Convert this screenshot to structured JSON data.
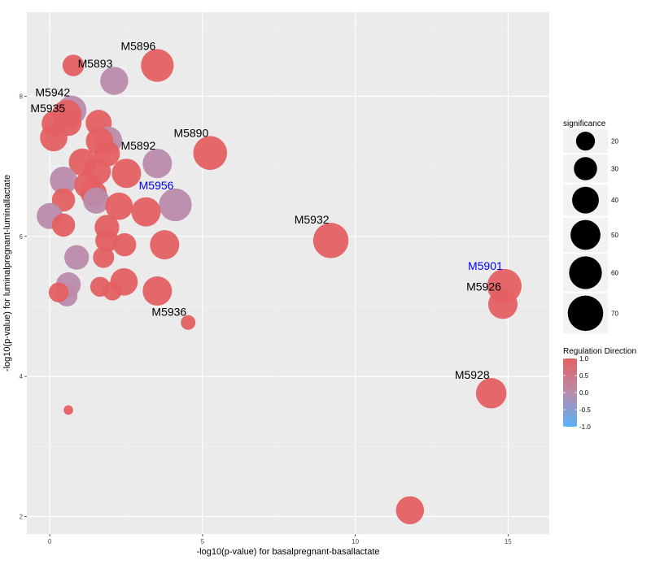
{
  "chart_data": {
    "type": "scatter",
    "subtype": "bubble",
    "title": "",
    "xlabel": "-log10(p-value) for basalpregnant-basallactate",
    "ylabel": "-log10(p-value) for luminalpregnant-luminallactate",
    "xlim": [
      -0.75,
      16.35
    ],
    "ylim": [
      1.75,
      9.2
    ],
    "xticks": [
      0,
      5,
      10,
      15
    ],
    "yticks": [
      2,
      4,
      6,
      8
    ],
    "grid": true,
    "background": "#EBEBEB",
    "colors": {
      "up": "#E46062",
      "mid": "#B98BAB",
      "down": "#56B1F7",
      "label_default": "#000000",
      "label_highlight": "#0000FF"
    },
    "size_legend": {
      "title": "significance",
      "breaks": [
        20,
        30,
        40,
        50,
        60,
        70
      ],
      "position": "right"
    },
    "color_legend": {
      "title": "Regulation Direction",
      "breaks": [
        1.0,
        0.5,
        0.0,
        -0.5,
        -1.0
      ],
      "labels": [
        "1.0",
        "0.5",
        "0.0",
        "-0.5",
        "-1.0"
      ],
      "position": "right"
    },
    "points": [
      {
        "x": 0.77,
        "y": 8.44,
        "size": 26,
        "direction": 1,
        "label": ""
      },
      {
        "x": 3.52,
        "y": 8.44,
        "size": 60,
        "direction": 1,
        "label": "M5896",
        "label_color": "#000000"
      },
      {
        "x": 2.11,
        "y": 8.22,
        "size": 44,
        "direction": 0,
        "label": "M5893",
        "label_color": "#000000"
      },
      {
        "x": 0.72,
        "y": 7.8,
        "size": 48,
        "direction": 0,
        "label": "M5942",
        "label_color": "#000000"
      },
      {
        "x": 0.56,
        "y": 7.74,
        "size": 48,
        "direction": 1,
        "label": "M5935",
        "label_color": "#000000"
      },
      {
        "x": 0.16,
        "y": 7.61,
        "size": 38,
        "direction": 1,
        "label": ""
      },
      {
        "x": 0.61,
        "y": 7.62,
        "size": 38,
        "direction": 1,
        "label": ""
      },
      {
        "x": 1.6,
        "y": 7.62,
        "size": 38,
        "direction": 1,
        "label": ""
      },
      {
        "x": 0.13,
        "y": 7.41,
        "size": 42,
        "direction": 1,
        "label": ""
      },
      {
        "x": 1.92,
        "y": 7.37,
        "size": 42,
        "direction": 0,
        "label": ""
      },
      {
        "x": 1.63,
        "y": 7.36,
        "size": 42,
        "direction": 1,
        "label": ""
      },
      {
        "x": 5.25,
        "y": 7.19,
        "size": 64,
        "direction": 1,
        "label": "M5890",
        "label_color": "#000000"
      },
      {
        "x": 1.87,
        "y": 7.18,
        "size": 38,
        "direction": 1,
        "label": ""
      },
      {
        "x": 3.52,
        "y": 7.04,
        "size": 48,
        "direction": 0,
        "label": "M5892",
        "label_color": "#000000"
      },
      {
        "x": 1.07,
        "y": 7.06,
        "size": 42,
        "direction": 1,
        "label": ""
      },
      {
        "x": 1.55,
        "y": 6.93,
        "size": 42,
        "direction": 1,
        "label": ""
      },
      {
        "x": 2.51,
        "y": 6.9,
        "size": 48,
        "direction": 1,
        "label": ""
      },
      {
        "x": 0.45,
        "y": 6.8,
        "size": 42,
        "direction": 0,
        "label": ""
      },
      {
        "x": 1.23,
        "y": 6.73,
        "size": 38,
        "direction": 1,
        "label": ""
      },
      {
        "x": 1.44,
        "y": 6.61,
        "size": 38,
        "direction": 1,
        "label": ""
      },
      {
        "x": 1.52,
        "y": 6.51,
        "size": 38,
        "direction": 0,
        "label": ""
      },
      {
        "x": 0.45,
        "y": 6.52,
        "size": 30,
        "direction": 1,
        "label": ""
      },
      {
        "x": 2.27,
        "y": 6.43,
        "size": 42,
        "direction": 1,
        "label": ""
      },
      {
        "x": 4.11,
        "y": 6.45,
        "size": 60,
        "direction": 0,
        "label": "M5956",
        "label_color": "#0000FF"
      },
      {
        "x": 3.15,
        "y": 6.35,
        "size": 48,
        "direction": 1,
        "label": ""
      },
      {
        "x": 0.0,
        "y": 6.29,
        "size": 38,
        "direction": 0,
        "label": ""
      },
      {
        "x": 0.45,
        "y": 6.16,
        "size": 30,
        "direction": 1,
        "label": ""
      },
      {
        "x": 1.87,
        "y": 6.13,
        "size": 34,
        "direction": 1,
        "label": ""
      },
      {
        "x": 1.87,
        "y": 5.94,
        "size": 30,
        "direction": 1,
        "label": ""
      },
      {
        "x": 2.45,
        "y": 5.88,
        "size": 30,
        "direction": 1,
        "label": ""
      },
      {
        "x": 3.76,
        "y": 5.88,
        "size": 48,
        "direction": 1,
        "label": ""
      },
      {
        "x": 9.2,
        "y": 5.94,
        "size": 70,
        "direction": 1,
        "label": "M5932",
        "label_color": "#000000"
      },
      {
        "x": 0.88,
        "y": 5.7,
        "size": 34,
        "direction": 0,
        "label": ""
      },
      {
        "x": 1.76,
        "y": 5.7,
        "size": 25,
        "direction": 1,
        "label": ""
      },
      {
        "x": 0.61,
        "y": 5.31,
        "size": 34,
        "direction": 0,
        "label": ""
      },
      {
        "x": 2.43,
        "y": 5.35,
        "size": 42,
        "direction": 1,
        "label": ""
      },
      {
        "x": 1.65,
        "y": 5.28,
        "size": 22,
        "direction": 1,
        "label": ""
      },
      {
        "x": 2.05,
        "y": 5.22,
        "size": 20,
        "direction": 1,
        "label": ""
      },
      {
        "x": 3.52,
        "y": 5.22,
        "size": 48,
        "direction": 1,
        "label": ""
      },
      {
        "x": 0.56,
        "y": 5.15,
        "size": 25,
        "direction": 0,
        "label": ""
      },
      {
        "x": 0.29,
        "y": 5.2,
        "size": 22,
        "direction": 1,
        "label": ""
      },
      {
        "x": 4.53,
        "y": 4.77,
        "size": 12,
        "direction": 1,
        "label": "M5936",
        "label_color": "#000000"
      },
      {
        "x": 14.88,
        "y": 5.29,
        "size": 66,
        "direction": 1,
        "label": "M5901",
        "label_color": "#0000FF"
      },
      {
        "x": 14.83,
        "y": 5.03,
        "size": 48,
        "direction": 1,
        "label": "M5926",
        "label_color": "#000000"
      },
      {
        "x": 14.45,
        "y": 3.76,
        "size": 52,
        "direction": 1,
        "label": "M5928",
        "label_color": "#000000"
      },
      {
        "x": 0.61,
        "y": 3.52,
        "size": 5,
        "direction": 1,
        "label": ""
      },
      {
        "x": 11.79,
        "y": 2.09,
        "size": 44,
        "direction": 1,
        "label": ""
      }
    ]
  }
}
